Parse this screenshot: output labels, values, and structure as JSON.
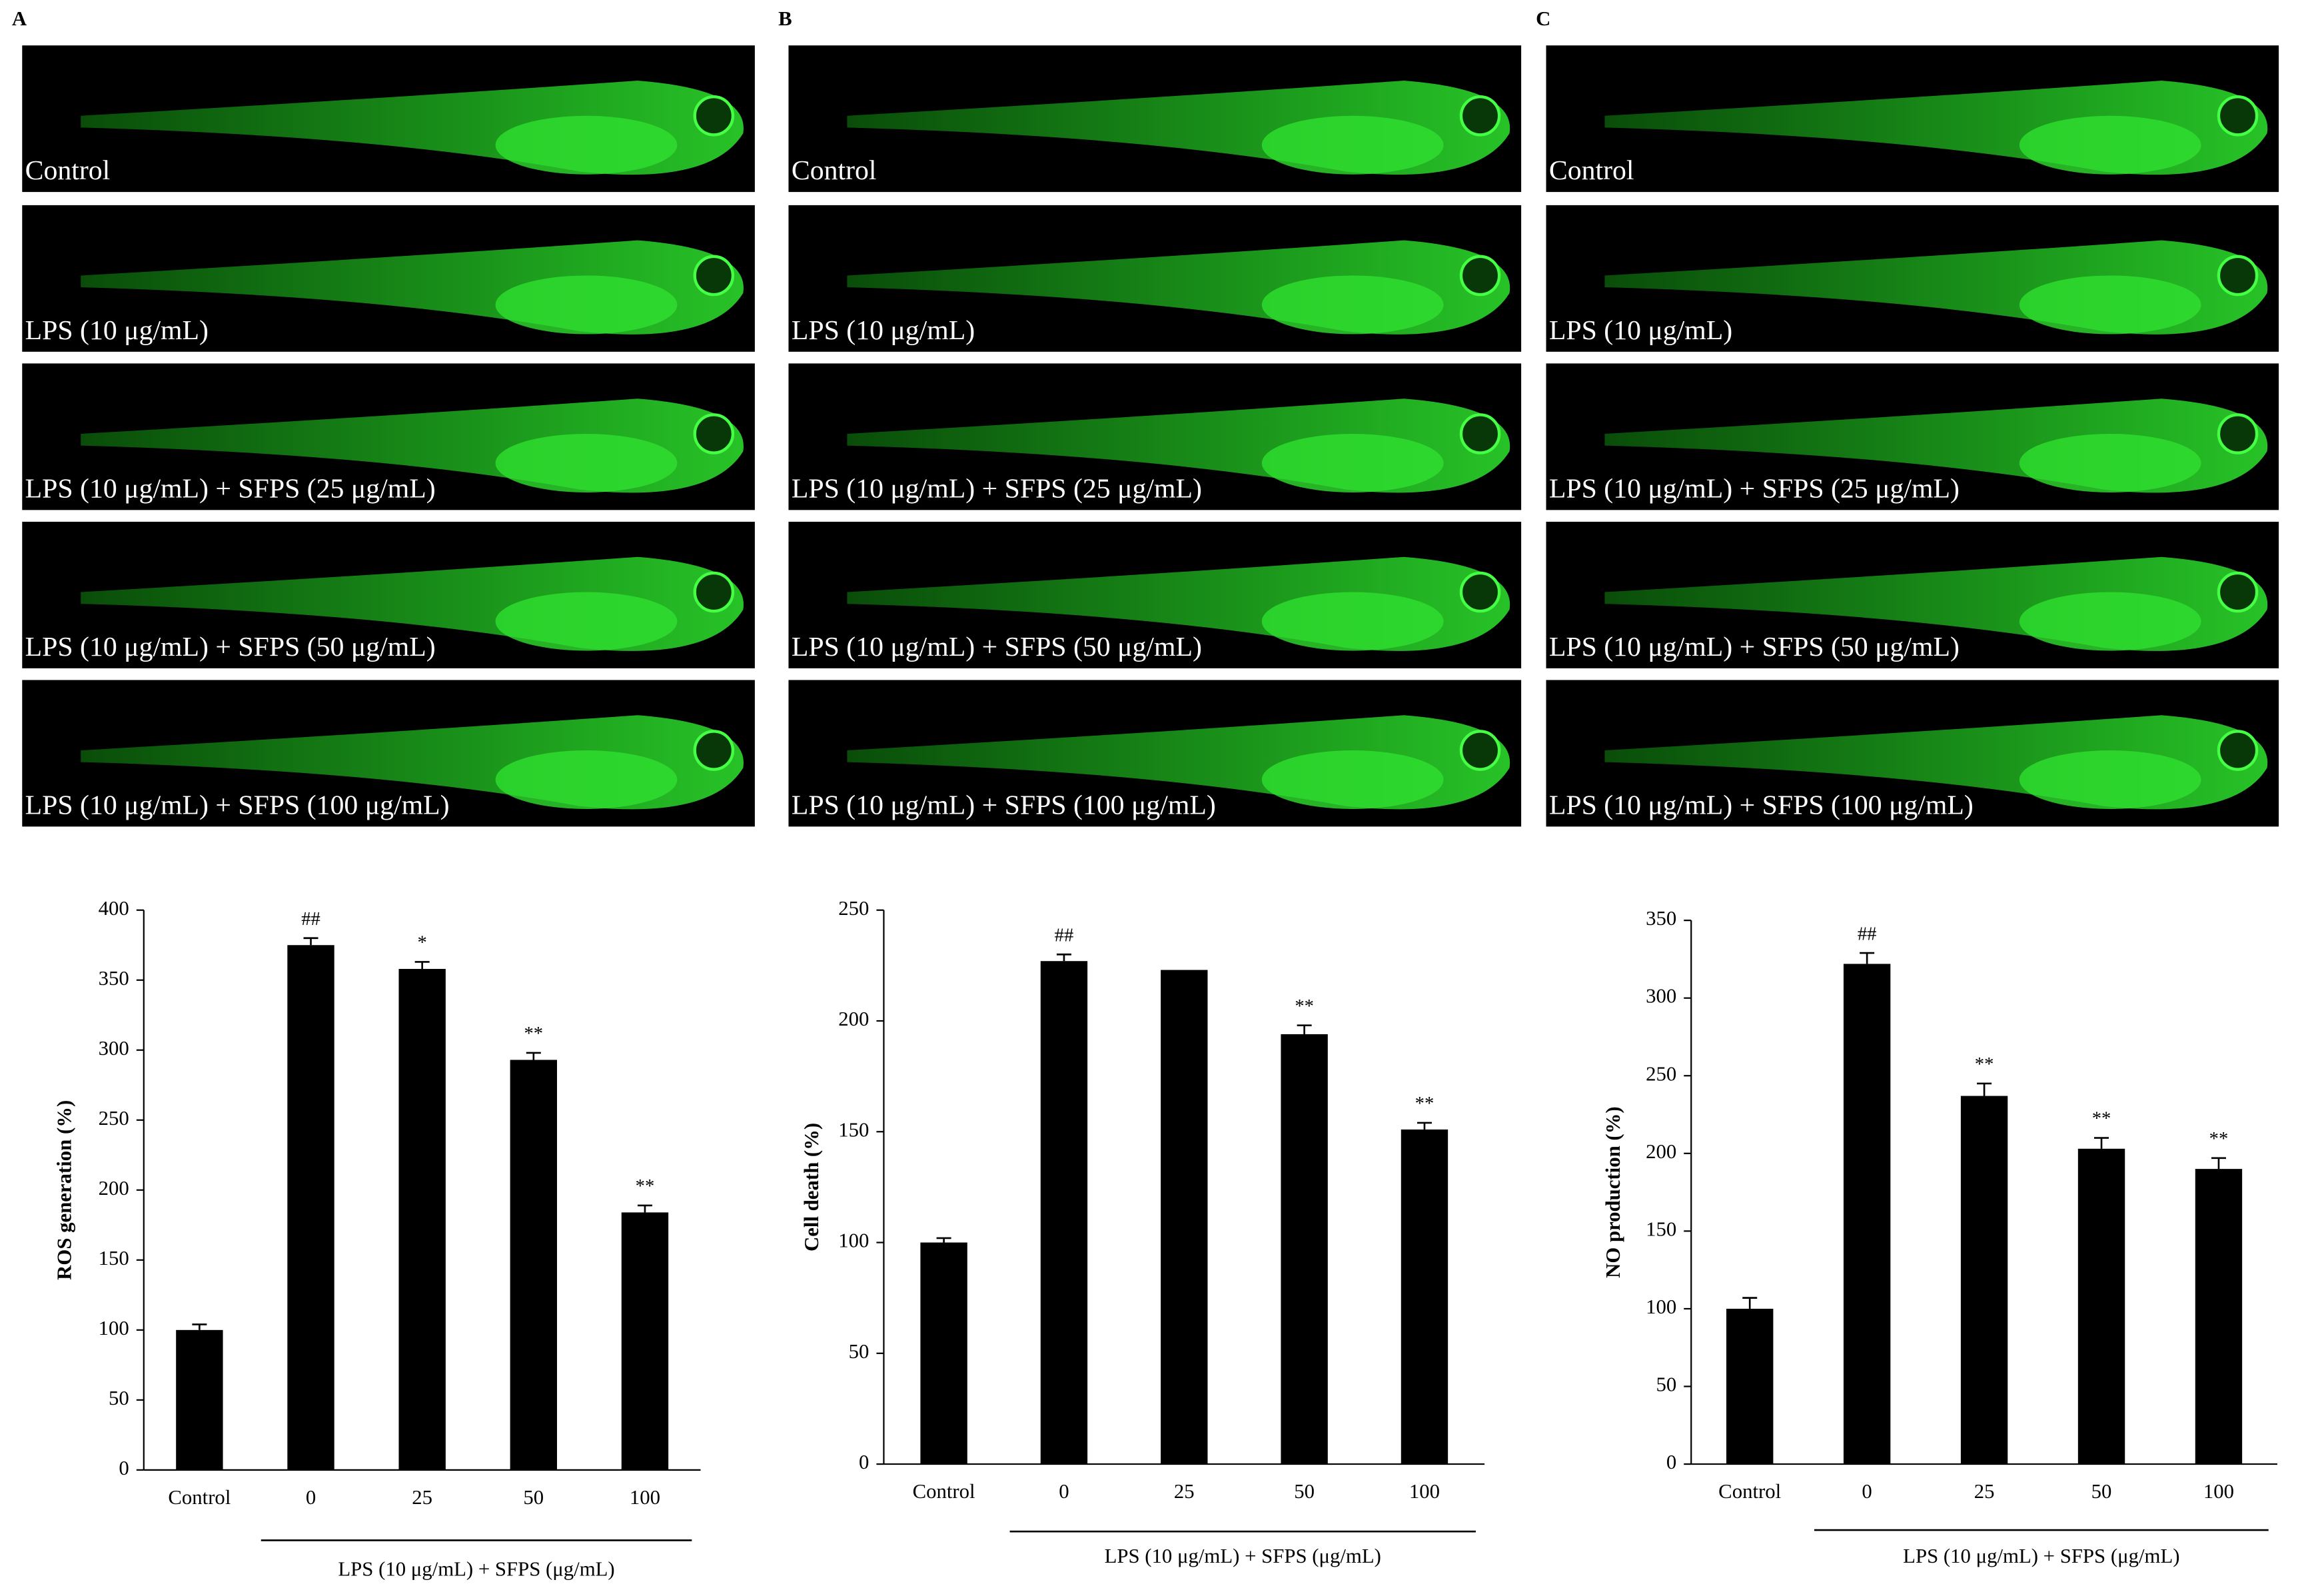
{
  "panels": [
    {
      "label": "A",
      "captions": [
        "Control",
        "LPS (10 μg/mL)",
        "LPS (10 μg/mL) + SFPS (25 μg/mL)",
        "LPS (10 μg/mL) + SFPS (50 μg/mL)",
        "LPS (10 μg/mL) + SFPS (100 μg/mL)"
      ]
    },
    {
      "label": "B",
      "captions": [
        "Control",
        "LPS (10 μg/mL)",
        "LPS (10 μg/mL) + SFPS (25 μg/mL)",
        "LPS (10 μg/mL) + SFPS (50 μg/mL)",
        "LPS (10 μg/mL) + SFPS (100 μg/mL)"
      ]
    },
    {
      "label": "C",
      "captions": [
        "Control",
        "LPS (10 μg/mL)",
        "LPS (10 μg/mL) + SFPS (25 μg/mL)",
        "LPS (10 μg/mL) + SFPS (50 μg/mL)",
        "LPS (10 μg/mL) + SFPS (100 μg/mL)"
      ]
    }
  ],
  "chart_data": [
    {
      "type": "bar",
      "ylabel": "ROS generation (%)",
      "xlabel": "LPS (10 μg/mL) + SFPS (μg/mL)",
      "categories": [
        "Control",
        "0",
        "25",
        "50",
        "100"
      ],
      "values": [
        100,
        375,
        358,
        293,
        184
      ],
      "errors": [
        4,
        5,
        5,
        5,
        5
      ],
      "annotations": [
        null,
        "##",
        "*",
        "**",
        "**"
      ],
      "color": "#000000",
      "ylim": [
        0,
        400
      ],
      "yticks": [
        0,
        50,
        100,
        150,
        200,
        250,
        300,
        350,
        400
      ]
    },
    {
      "type": "bar",
      "ylabel": "Cell death (%)",
      "xlabel": "LPS (10 μg/mL) + SFPS (μg/mL)",
      "categories": [
        "Control",
        "0",
        "25",
        "50",
        "100"
      ],
      "values": [
        100,
        227,
        223,
        194,
        151
      ],
      "errors": [
        2,
        3,
        null,
        4,
        3
      ],
      "annotations": [
        null,
        "##",
        null,
        "**",
        "**"
      ],
      "color": "#000000",
      "ylim": [
        0,
        250
      ],
      "yticks": [
        0,
        50,
        100,
        150,
        200,
        250
      ]
    },
    {
      "type": "bar",
      "ylabel": "NO production (%)",
      "xlabel": "LPS (10 μg/mL) + SFPS (μg/mL)",
      "categories": [
        "Control",
        "0",
        "25",
        "50",
        "100"
      ],
      "values": [
        100,
        322,
        237,
        203,
        190
      ],
      "errors": [
        7,
        7,
        8,
        7,
        7
      ],
      "annotations": [
        null,
        "##",
        "**",
        "**",
        "**"
      ],
      "color": "#000000",
      "ylim": [
        0,
        350
      ],
      "yticks": [
        0,
        50,
        100,
        150,
        200,
        250,
        300,
        350
      ]
    }
  ]
}
